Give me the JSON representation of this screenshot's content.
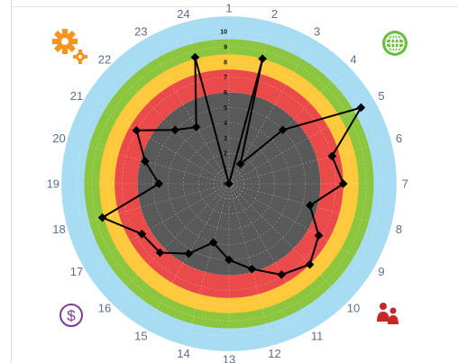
{
  "chart_data": {
    "type": "radar",
    "spoke_labels": [
      "1",
      "2",
      "3",
      "4",
      "5",
      "6",
      "7",
      "8",
      "9",
      "10",
      "11",
      "12",
      "13",
      "14",
      "15",
      "16",
      "17",
      "18",
      "19",
      "20",
      "21",
      "22",
      "23",
      "24"
    ],
    "ring_labels": [
      "0",
      "1",
      "2",
      "3",
      "4",
      "5",
      "6",
      "7",
      "8",
      "9",
      "10"
    ],
    "rmax": 10,
    "values": [
      0,
      8.5,
      1.5,
      5,
      10,
      7,
      7.5,
      5.5,
      6.8,
      7.5,
      6.9,
      5.8,
      5,
      4,
      5.3,
      6.4,
      6.6,
      8.6,
      4.6,
      5.7,
      7,
      5,
      4.3,
      8.6
    ],
    "bands": [
      {
        "from": 0,
        "to": 6,
        "color": "#595959"
      },
      {
        "from": 6,
        "to": 7.5,
        "color": "#ea4a4a"
      },
      {
        "from": 7.5,
        "to": 8.5,
        "color": "#ffc93c"
      },
      {
        "from": 8.5,
        "to": 9.5,
        "color": "#8cc63e"
      },
      {
        "from": 9.5,
        "to": 11,
        "color": "#a8dcf2"
      }
    ],
    "line_color": "#000000"
  },
  "icons": {
    "top_left": "gears-icon",
    "top_right": "globe-icon",
    "bottom_left": "dollar-icon",
    "bottom_right": "people-icon"
  },
  "colors": {
    "gears": "#f7941d",
    "globe": "#6cbf3d",
    "dollar": "#7b3c96",
    "people": "#c62828"
  }
}
